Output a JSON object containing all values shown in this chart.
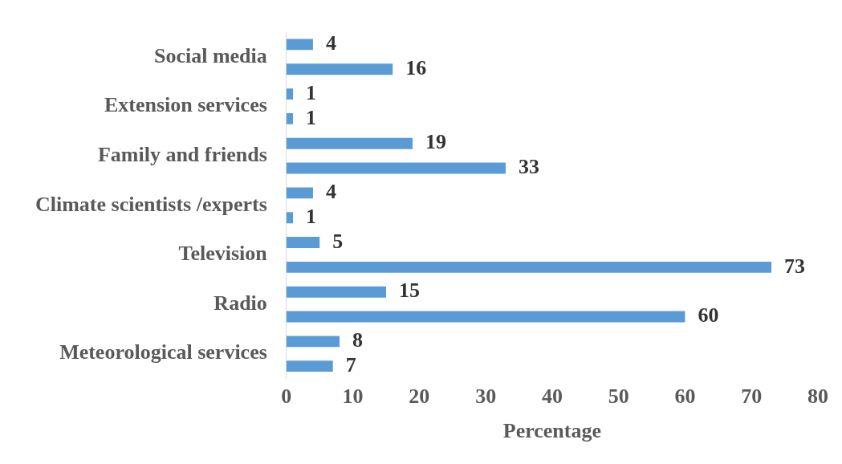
{
  "chart_data": {
    "type": "bar",
    "orientation": "horizontal",
    "xlabel": "Percentage",
    "categories": [
      "Social media",
      "Extension services",
      "Family and friends",
      "Climate scientists /experts",
      "Television",
      "Radio",
      "Meteorological services"
    ],
    "series": [
      {
        "color": "#5b9bd5",
        "values": [
          4,
          1,
          19,
          4,
          5,
          15,
          8
        ]
      },
      {
        "color": "#5b9bd5",
        "values": [
          16,
          1,
          33,
          1,
          73,
          60,
          7
        ]
      }
    ],
    "xlim": [
      0,
      80
    ],
    "xticks": [
      0,
      10,
      20,
      30,
      40,
      50,
      60,
      70,
      80
    ],
    "grid": false,
    "legend": false,
    "data_labels": true
  }
}
